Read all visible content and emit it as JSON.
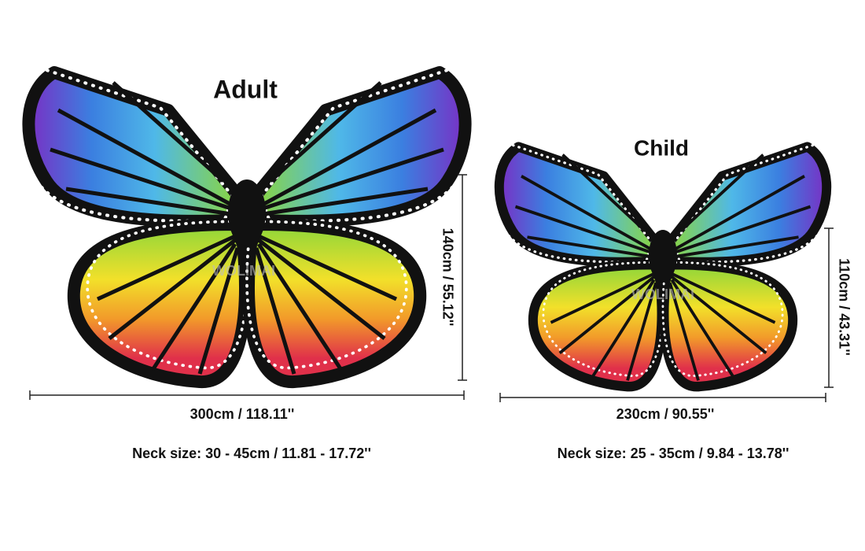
{
  "adult": {
    "title": "Adult",
    "width_label": "300cm / 118.11''",
    "height_label": "140cm / 55.12''",
    "neck_size": "Neck size: 30 - 45cm / 11.81 - 17.72''",
    "watermark": "WOLIMAI"
  },
  "child": {
    "title": "Child",
    "width_label": "230cm / 90.55''",
    "height_label": "110cm / 43.31''",
    "neck_size": "Neck size: 25 - 35cm / 9.84 - 13.78''",
    "watermark": "WOLIMAI"
  }
}
